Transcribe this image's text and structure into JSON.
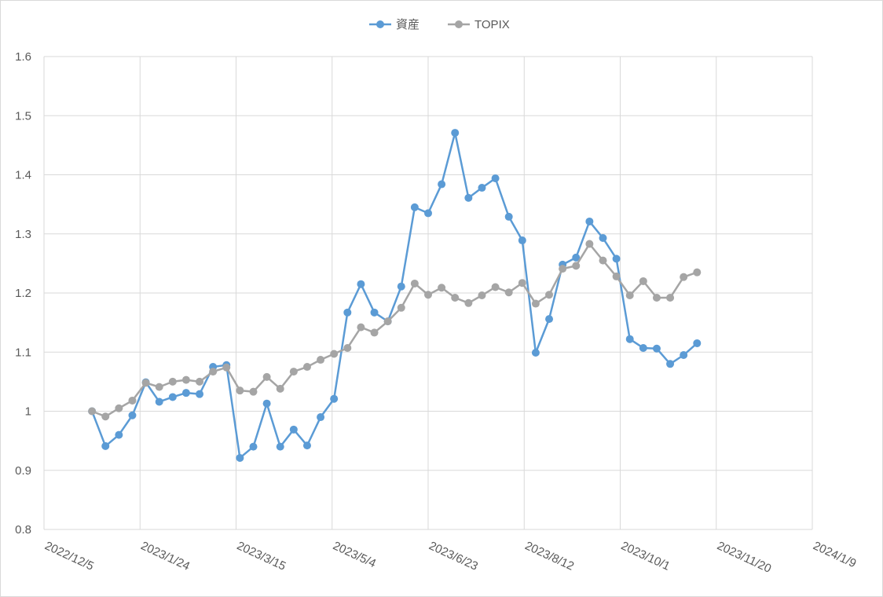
{
  "chart_data": {
    "type": "line",
    "title": "",
    "xlabel": "",
    "ylabel": "",
    "x_axis": {
      "type": "date",
      "min": "2022-12-05",
      "max": "2024-01-09",
      "tick_labels": [
        "2022/12/5",
        "2023/1/24",
        "2023/3/15",
        "2023/5/4",
        "2023/6/23",
        "2023/8/12",
        "2023/10/1",
        "2023/11/20",
        "2024/1/9"
      ]
    },
    "y_axis": {
      "min": 0.8,
      "max": 1.6,
      "tick_labels": [
        "0.8",
        "0.9",
        "1",
        "1.1",
        "1.2",
        "1.3",
        "1.4",
        "1.5",
        "1.6"
      ]
    },
    "grid": true,
    "legend_position": "top",
    "x": [
      "2022-12-30",
      "2023-01-06",
      "2023-01-13",
      "2023-01-20",
      "2023-01-27",
      "2023-02-03",
      "2023-02-10",
      "2023-02-17",
      "2023-02-24",
      "2023-03-03",
      "2023-03-10",
      "2023-03-17",
      "2023-03-24",
      "2023-03-31",
      "2023-04-07",
      "2023-04-14",
      "2023-04-21",
      "2023-04-28",
      "2023-05-05",
      "2023-05-12",
      "2023-05-19",
      "2023-05-26",
      "2023-06-02",
      "2023-06-09",
      "2023-06-16",
      "2023-06-23",
      "2023-06-30",
      "2023-07-07",
      "2023-07-14",
      "2023-07-21",
      "2023-07-28",
      "2023-08-04",
      "2023-08-11",
      "2023-08-18",
      "2023-08-25",
      "2023-09-01",
      "2023-09-08",
      "2023-09-15",
      "2023-09-22",
      "2023-09-29",
      "2023-10-06",
      "2023-10-13",
      "2023-10-20",
      "2023-10-27",
      "2023-11-03",
      "2023-11-10"
    ],
    "series": [
      {
        "name": "資産",
        "color": "#5b9bd5",
        "values": [
          1.0,
          0.941,
          0.96,
          0.993,
          1.049,
          1.016,
          1.024,
          1.031,
          1.029,
          1.075,
          1.078,
          0.921,
          0.94,
          1.013,
          0.94,
          0.969,
          0.942,
          0.99,
          1.021,
          1.167,
          1.215,
          1.167,
          1.152,
          1.211,
          1.345,
          1.335,
          1.384,
          1.471,
          1.361,
          1.378,
          1.394,
          1.329,
          1.289,
          1.099,
          1.156,
          1.248,
          1.26,
          1.321,
          1.293,
          1.258,
          1.122,
          1.107,
          1.106,
          1.08,
          1.095,
          1.115
        ]
      },
      {
        "name": "TOPIX",
        "color": "#a5a5a5",
        "values": [
          1.0,
          0.991,
          1.005,
          1.018,
          1.048,
          1.041,
          1.05,
          1.053,
          1.05,
          1.067,
          1.074,
          1.035,
          1.033,
          1.058,
          1.038,
          1.067,
          1.075,
          1.087,
          1.097,
          1.107,
          1.142,
          1.133,
          1.152,
          1.175,
          1.216,
          1.197,
          1.209,
          1.192,
          1.183,
          1.196,
          1.21,
          1.201,
          1.217,
          1.182,
          1.197,
          1.241,
          1.246,
          1.283,
          1.255,
          1.228,
          1.196,
          1.22,
          1.192,
          1.192,
          1.227,
          1.235
        ]
      }
    ]
  }
}
